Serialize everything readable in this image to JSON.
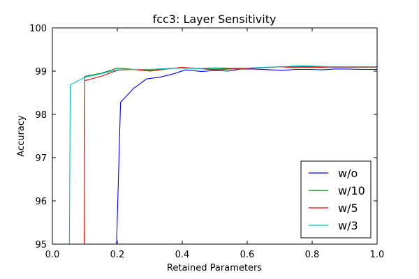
{
  "chart_data": {
    "type": "line",
    "title": "fcc3: Layer Sensitivity",
    "xlabel": "Retained Parameters",
    "ylabel": "Accuracy",
    "xlim": [
      0.0,
      1.0
    ],
    "ylim": [
      95,
      100
    ],
    "x_ticks": [
      "0.0",
      "0.2",
      "0.4",
      "0.6",
      "0.8",
      "1.0"
    ],
    "y_ticks": [
      "95",
      "96",
      "97",
      "98",
      "99",
      "100"
    ],
    "grid": false,
    "legend_position": "lower-right",
    "series": [
      {
        "name": "w/o",
        "color": "#0000ff",
        "x": [
          0.196,
          0.21,
          0.25,
          0.29,
          0.33,
          0.37,
          0.41,
          0.46,
          0.5,
          0.54,
          0.58,
          0.62,
          0.67,
          0.71,
          0.75,
          0.79,
          0.83,
          0.87,
          0.91,
          0.95,
          1.0
        ],
        "y": [
          94.5,
          98.28,
          98.6,
          98.82,
          98.86,
          98.93,
          99.03,
          98.99,
          99.02,
          99.0,
          99.05,
          99.05,
          99.03,
          99.02,
          99.04,
          99.04,
          99.03,
          99.05,
          99.05,
          99.04,
          99.04
        ]
      },
      {
        "name": "w/10",
        "color": "#008000",
        "x": [
          0.098,
          0.1,
          0.15,
          0.2,
          0.25,
          0.3,
          0.35,
          0.4,
          0.45,
          0.5,
          0.55,
          0.6,
          0.65,
          0.7,
          0.75,
          0.8,
          0.85,
          0.9,
          0.95,
          1.0
        ],
        "y": [
          94.5,
          98.88,
          98.95,
          99.07,
          99.04,
          99.02,
          99.05,
          99.08,
          99.06,
          99.05,
          99.06,
          99.07,
          99.08,
          99.1,
          99.1,
          99.11,
          99.1,
          99.1,
          99.1,
          99.1
        ]
      },
      {
        "name": "w/5",
        "color": "#ff0000",
        "x": [
          0.098,
          0.1,
          0.15,
          0.2,
          0.25,
          0.3,
          0.35,
          0.4,
          0.45,
          0.5,
          0.55,
          0.6,
          0.65,
          0.7,
          0.75,
          0.8,
          0.85,
          0.9,
          0.95,
          1.0
        ],
        "y": [
          94.5,
          98.78,
          98.88,
          99.02,
          99.04,
          99.0,
          99.05,
          99.09,
          99.06,
          99.03,
          99.05,
          99.06,
          99.08,
          99.1,
          99.08,
          99.09,
          99.09,
          99.09,
          99.09,
          99.09
        ]
      },
      {
        "name": "w/3",
        "color": "#00bfbf",
        "x": [
          0.052,
          0.055,
          0.1,
          0.15,
          0.2,
          0.25,
          0.3,
          0.35,
          0.4,
          0.45,
          0.5,
          0.55,
          0.6,
          0.65,
          0.7,
          0.75,
          0.8,
          0.85,
          0.9,
          0.95,
          1.0
        ],
        "y": [
          94.5,
          98.68,
          98.86,
          98.94,
          99.03,
          99.04,
          99.04,
          99.06,
          99.07,
          99.06,
          99.08,
          99.07,
          99.07,
          99.09,
          99.1,
          99.12,
          99.12,
          99.1,
          99.1,
          99.1,
          99.1
        ]
      }
    ]
  }
}
